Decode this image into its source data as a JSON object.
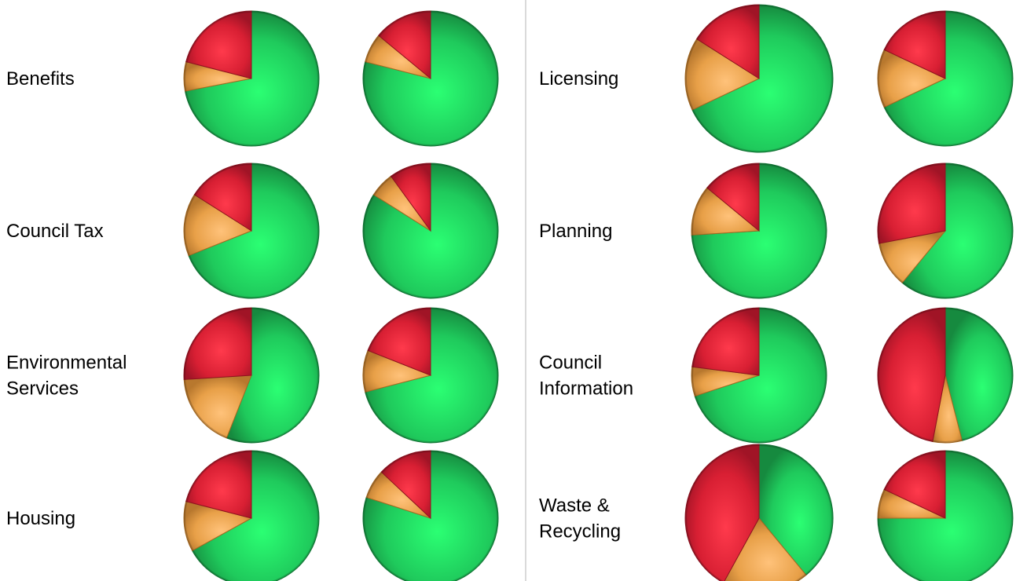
{
  "colors": {
    "green": "#1fca5c",
    "orange": "#e8a048",
    "red": "#d81f33"
  },
  "chart_data": {
    "type": "pie",
    "slice_order": [
      "green",
      "orange",
      "red"
    ],
    "left_column": [
      {
        "label": [
          "Benefits"
        ],
        "pies": [
          {
            "values": [
              72,
              7,
              21
            ],
            "size": "normal"
          },
          {
            "values": [
              79,
              7,
              14
            ],
            "size": "normal"
          }
        ]
      },
      {
        "label": [
          "Council Tax"
        ],
        "pies": [
          {
            "values": [
              69,
              15,
              16
            ],
            "size": "normal"
          },
          {
            "values": [
              84,
              6,
              10
            ],
            "size": "normal"
          }
        ]
      },
      {
        "label": [
          "Environmental",
          "Services"
        ],
        "pies": [
          {
            "values": [
              56,
              18,
              26
            ],
            "size": "normal"
          },
          {
            "values": [
              71,
              10,
              19
            ],
            "size": "normal"
          }
        ]
      },
      {
        "label": [
          "Housing"
        ],
        "pies": [
          {
            "values": [
              67,
              12,
              21
            ],
            "size": "normal"
          },
          {
            "values": [
              80,
              7,
              13
            ],
            "size": "normal"
          }
        ]
      }
    ],
    "right_column": [
      {
        "label": [
          "Licensing"
        ],
        "pies": [
          {
            "values": [
              68,
              16,
              16
            ],
            "size": "large"
          },
          {
            "values": [
              68,
              14,
              18
            ],
            "size": "normal"
          }
        ]
      },
      {
        "label": [
          "Planning"
        ],
        "pies": [
          {
            "values": [
              74,
              12,
              14
            ],
            "size": "normal"
          },
          {
            "values": [
              61,
              11,
              28
            ],
            "size": "normal"
          }
        ]
      },
      {
        "label": [
          "Council",
          "Information"
        ],
        "pies": [
          {
            "values": [
              70,
              7,
              23
            ],
            "size": "normal"
          },
          {
            "values": [
              46,
              7,
              47
            ],
            "size": "normal"
          }
        ]
      },
      {
        "label": [
          "Waste &",
          "Recycling"
        ],
        "pies": [
          {
            "values": [
              39,
              19,
              42
            ],
            "size": "large"
          },
          {
            "values": [
              75,
              7,
              18
            ],
            "size": "normal"
          }
        ]
      }
    ]
  }
}
